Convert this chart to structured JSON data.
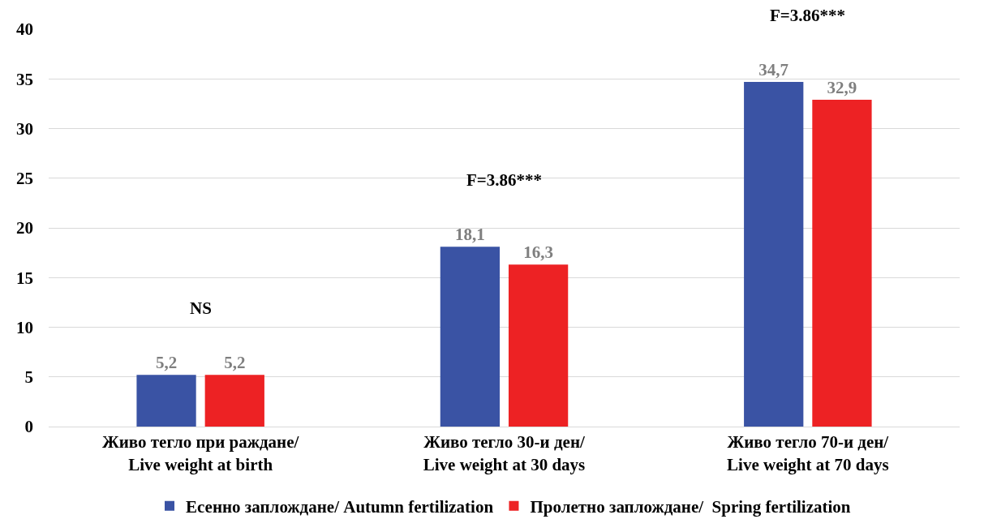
{
  "chart_data": {
    "type": "bar",
    "categories": [
      "Живо тегло при раждане/ Live weight at birth",
      "Живо тегло 30-и ден/ Live weight at 30 days",
      "Живо тегло 70-и ден/ Live weight at 70 days"
    ],
    "series": [
      {
        "name": "Есенно заплождане/ Autumn fertilization",
        "color": "#3a53a4",
        "values": [
          5.2,
          18.1,
          34.7
        ],
        "value_labels": [
          "5,2",
          "18,1",
          "34,7"
        ]
      },
      {
        "name": "Пролетно заплождане/  Spring fertilization",
        "color": "#ed2224",
        "values": [
          5.2,
          16.3,
          32.9
        ],
        "value_labels": [
          "5,2",
          "16,3",
          "32,9"
        ]
      }
    ],
    "ylim": [
      0,
      40
    ],
    "yticks": [
      0,
      5,
      10,
      15,
      20,
      25,
      30,
      35,
      40
    ],
    "grid": "y",
    "legend": "bottom",
    "annotations": [
      "NS",
      "F=3.86***",
      "F=3.86***"
    ]
  }
}
